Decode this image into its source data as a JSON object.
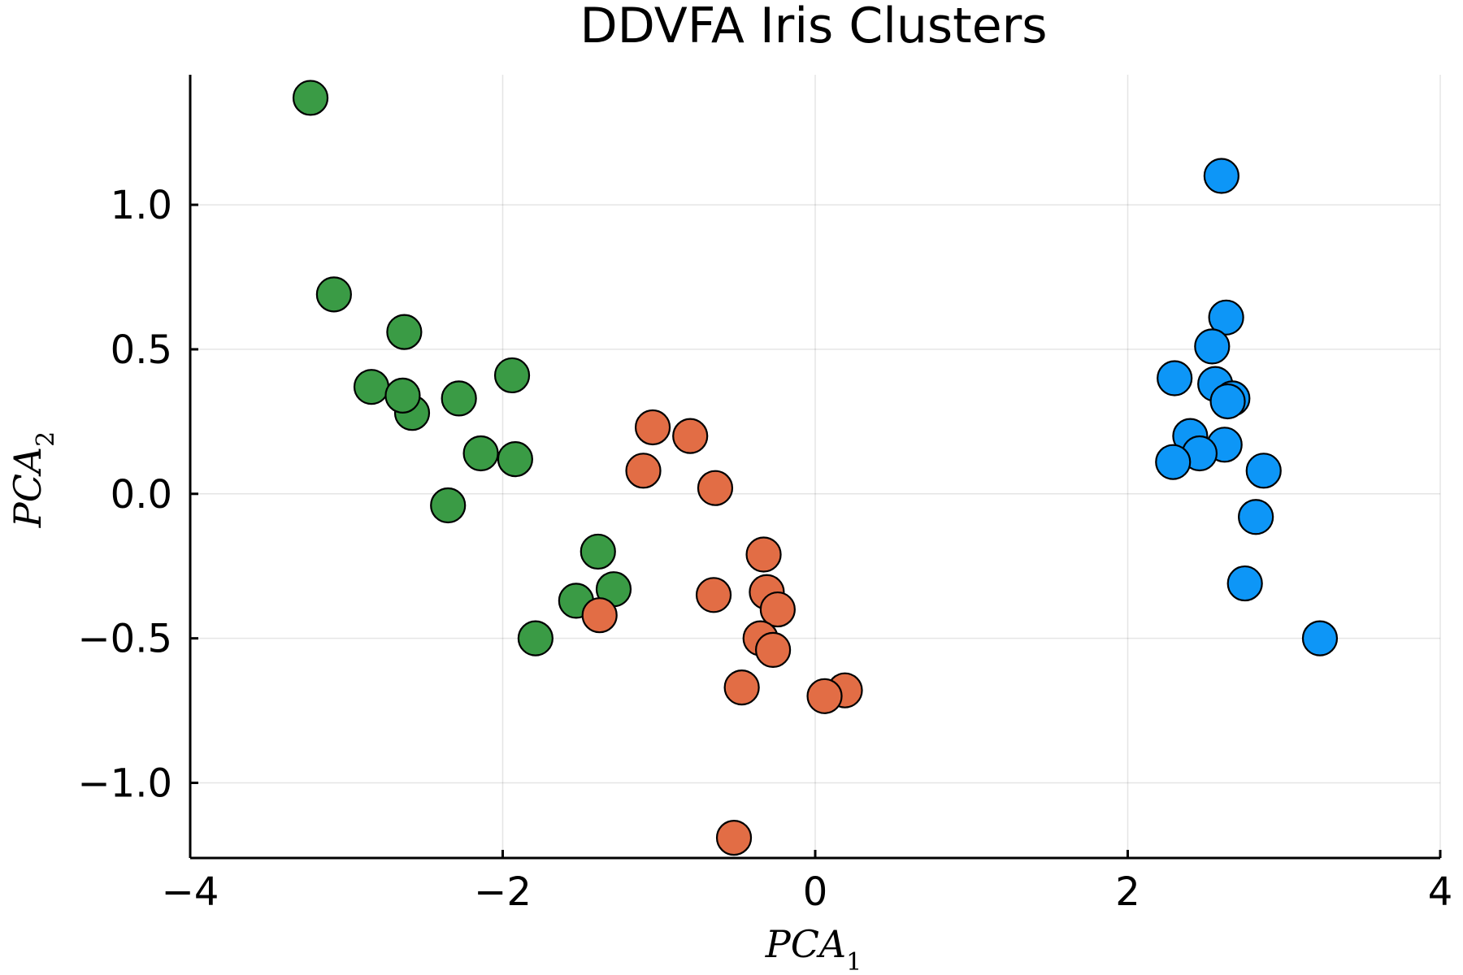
{
  "chart_data": {
    "type": "scatter",
    "title": "DDVFA Iris Clusters",
    "xlabel": {
      "base": "PCA",
      "sub": "1"
    },
    "ylabel": {
      "base": "PCA",
      "sub": "2"
    },
    "xlim": [
      -4,
      4
    ],
    "ylim": [
      -1.26,
      1.45
    ],
    "xticks": [
      -4,
      -2,
      0,
      2,
      4
    ],
    "xtick_labels": [
      "−4",
      "−2",
      "0",
      "2",
      "4"
    ],
    "yticks": [
      -1.0,
      -0.5,
      0.0,
      0.5,
      1.0
    ],
    "ytick_labels": [
      "−1.0",
      "−0.5",
      "0.0",
      "0.5",
      "1.0"
    ],
    "grid": true,
    "legend": "none",
    "series": [
      {
        "color": "#3a9b45",
        "points": [
          [
            -3.23,
            1.37
          ],
          [
            -3.08,
            0.69
          ],
          [
            -2.84,
            0.37
          ],
          [
            -2.63,
            0.56
          ],
          [
            -2.58,
            0.28
          ],
          [
            -2.64,
            0.34
          ],
          [
            -2.28,
            0.33
          ],
          [
            -2.14,
            0.14
          ],
          [
            -1.94,
            0.41
          ],
          [
            -1.92,
            0.12
          ],
          [
            -2.35,
            -0.04
          ],
          [
            -1.39,
            -0.2
          ],
          [
            -1.29,
            -0.33
          ],
          [
            -1.53,
            -0.37
          ],
          [
            -1.79,
            -0.5
          ]
        ]
      },
      {
        "color": "#e26d45",
        "points": [
          [
            -1.04,
            0.23
          ],
          [
            -0.8,
            0.2
          ],
          [
            -1.1,
            0.08
          ],
          [
            -0.64,
            0.02
          ],
          [
            -0.33,
            -0.21
          ],
          [
            -0.65,
            -0.35
          ],
          [
            -0.31,
            -0.34
          ],
          [
            -0.24,
            -0.4
          ],
          [
            -1.38,
            -0.42
          ],
          [
            -0.35,
            -0.5
          ],
          [
            -0.27,
            -0.54
          ],
          [
            -0.47,
            -0.67
          ],
          [
            0.19,
            -0.68
          ],
          [
            0.06,
            -0.7
          ],
          [
            -0.52,
            -1.19
          ]
        ]
      },
      {
        "color": "#0d96f7",
        "points": [
          [
            2.6,
            1.1
          ],
          [
            2.63,
            0.61
          ],
          [
            2.54,
            0.51
          ],
          [
            2.3,
            0.4
          ],
          [
            2.56,
            0.38
          ],
          [
            2.67,
            0.33
          ],
          [
            2.64,
            0.32
          ],
          [
            2.4,
            0.2
          ],
          [
            2.62,
            0.17
          ],
          [
            2.46,
            0.14
          ],
          [
            2.29,
            0.11
          ],
          [
            2.87,
            0.08
          ],
          [
            2.82,
            -0.08
          ],
          [
            2.75,
            -0.31
          ],
          [
            3.23,
            -0.5
          ]
        ]
      }
    ]
  }
}
